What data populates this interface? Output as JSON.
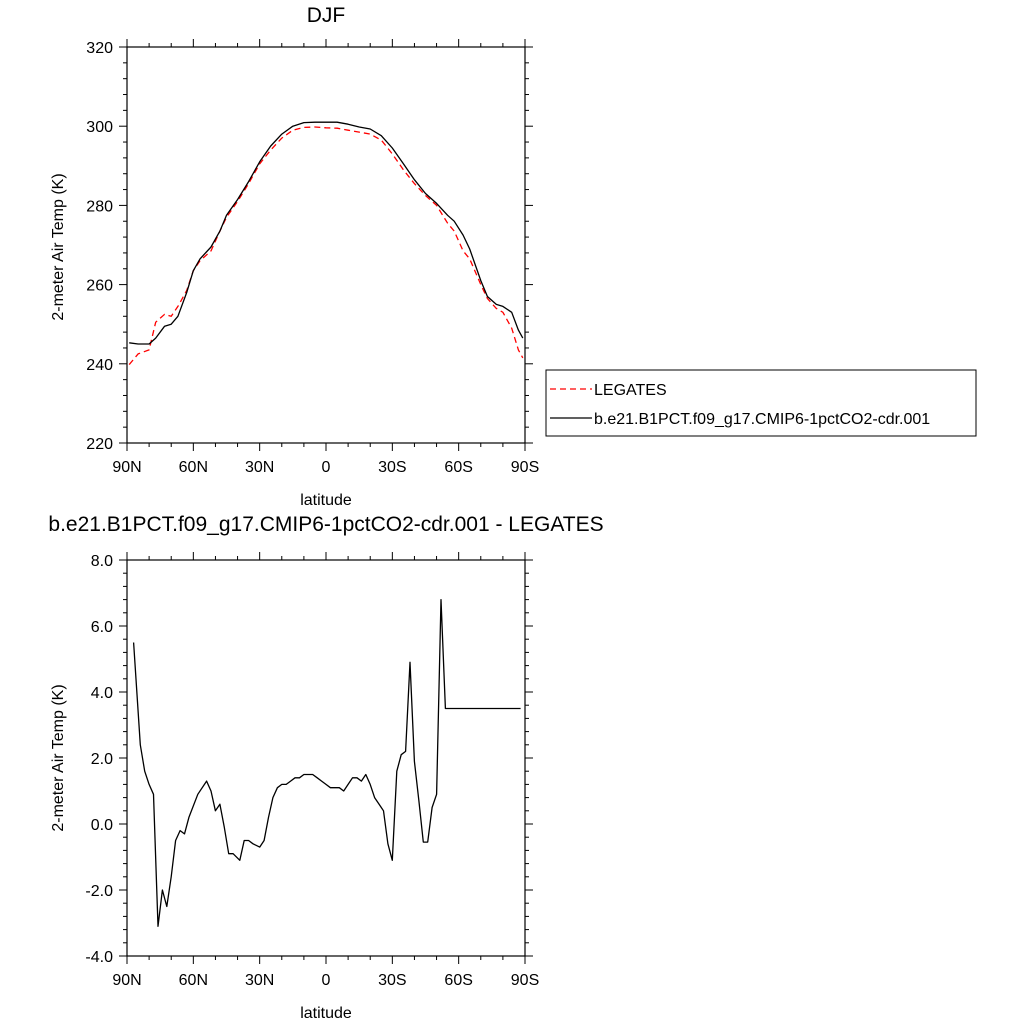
{
  "chart_data": [
    {
      "type": "line",
      "title": "DJF",
      "xlabel": "latitude",
      "ylabel": "2-meter Air Temp (K)",
      "xlim": [
        90,
        -90
      ],
      "ylim": [
        220,
        320
      ],
      "yticks": [
        220,
        240,
        260,
        280,
        300,
        320
      ],
      "ytick_labels": [
        "220",
        "240",
        "260",
        "280",
        "300",
        "320"
      ],
      "xticks": [
        90,
        60,
        30,
        0,
        -30,
        -60,
        -90
      ],
      "xtick_labels": [
        "90N",
        "60N",
        "30N",
        "0",
        "30S",
        "60S",
        "90S"
      ],
      "grid": false,
      "legend_position": "right",
      "x": [
        89,
        85,
        80,
        77,
        73,
        70,
        67,
        63,
        60,
        57,
        52,
        48,
        45,
        40,
        35,
        30,
        25,
        20,
        15,
        10,
        5,
        0,
        -5,
        -10,
        -15,
        -20,
        -25,
        -30,
        -35,
        -40,
        -45,
        -50,
        -55,
        -58,
        -62,
        -65,
        -70,
        -73,
        -77,
        -80,
        -84,
        -87,
        -89
      ],
      "series": [
        {
          "name": "LEGATES",
          "color": "#ff0000",
          "dash": "dashed",
          "values": [
            239.8,
            242.5,
            243.5,
            250.5,
            252.5,
            252.0,
            254.5,
            258.5,
            263.5,
            266.0,
            268.5,
            273.5,
            277.0,
            281.0,
            285.5,
            290.5,
            294.0,
            297.0,
            299.0,
            299.7,
            299.8,
            299.6,
            299.5,
            299.0,
            298.5,
            298.0,
            296.5,
            293.0,
            289.0,
            285.5,
            282.5,
            280.0,
            275.5,
            273.5,
            268.5,
            266.5,
            260.0,
            256.5,
            254.0,
            253.0,
            249.0,
            243.5,
            241.5
          ]
        },
        {
          "name": "b.e21.B1PCT.f09_g17.CMIP6-1pctCO2-cdr.001",
          "color": "#000000",
          "dash": "solid",
          "values": [
            245.3,
            245.0,
            245.0,
            246.5,
            249.5,
            250.0,
            252.0,
            258.0,
            263.5,
            266.5,
            269.5,
            273.5,
            277.5,
            281.5,
            286.0,
            291.0,
            295.0,
            298.0,
            300.0,
            300.9,
            301.0,
            301.0,
            301.0,
            300.5,
            299.8,
            299.3,
            297.6,
            294.5,
            290.5,
            286.5,
            283.0,
            280.5,
            277.5,
            276.0,
            272.5,
            269.0,
            261.0,
            257.0,
            255.0,
            254.5,
            253.0,
            248.5,
            246.5
          ]
        }
      ]
    },
    {
      "type": "line",
      "title": "b.e21.B1PCT.f09_g17.CMIP6-1pctCO2-cdr.001 - LEGATES",
      "xlabel": "latitude",
      "ylabel": "2-meter Air Temp (K)",
      "xlim": [
        90,
        -90
      ],
      "ylim": [
        -4.0,
        8.0
      ],
      "yticks": [
        -4,
        -2,
        0,
        2,
        4,
        6,
        8
      ],
      "ytick_labels": [
        "-4.0",
        "-2.0",
        "0.0",
        "2.0",
        "4.0",
        "6.0",
        "8.0"
      ],
      "xticks": [
        90,
        60,
        30,
        0,
        -30,
        -60,
        -90
      ],
      "xtick_labels": [
        "90N",
        "60N",
        "30N",
        "0",
        "30S",
        "60S",
        "90S"
      ],
      "grid": false,
      "x": [
        87,
        84,
        82,
        80,
        78,
        76,
        74,
        72,
        70,
        68,
        66,
        64,
        62,
        58,
        54,
        52,
        50,
        48,
        46,
        44,
        42,
        39,
        37,
        35,
        33,
        30,
        28,
        26,
        24,
        22,
        20,
        18,
        16,
        14,
        12,
        10,
        8,
        6,
        4,
        2,
        0,
        -2,
        -4,
        -6,
        -8,
        -10,
        -12,
        -14,
        -16,
        -18,
        -20,
        -22,
        -24,
        -26,
        -28,
        -30,
        -32,
        -34,
        -36,
        -38,
        -40,
        -42,
        -44,
        -46,
        -48,
        -50,
        -52,
        -54,
        -56,
        -58,
        -60,
        -62,
        -64,
        -66,
        -68,
        -70,
        -72,
        -74,
        -76,
        -78,
        -80,
        -82,
        -84,
        -86,
        -88
      ],
      "series": [
        {
          "name": "",
          "color": "#000000",
          "dash": "solid",
          "values": [
            5.5,
            2.4,
            1.6,
            1.2,
            0.9,
            -3.1,
            -2.0,
            -2.5,
            -1.6,
            -0.5,
            -0.2,
            -0.3,
            0.2,
            0.9,
            1.3,
            1.0,
            0.4,
            0.6,
            -0.1,
            -0.9,
            -0.9,
            -1.1,
            -0.5,
            -0.5,
            -0.6,
            -0.7,
            -0.5,
            0.2,
            0.8,
            1.1,
            1.2,
            1.2,
            1.3,
            1.4,
            1.4,
            1.5,
            1.5,
            1.5,
            1.4,
            1.3,
            1.2,
            1.1,
            1.1,
            1.1,
            1.0,
            1.2,
            1.4,
            1.4,
            1.3,
            1.5,
            1.2,
            0.8,
            0.6,
            0.4,
            -0.6,
            -1.1,
            1.6,
            2.1,
            2.2,
            4.9,
            1.9,
            0.7,
            -0.55,
            -0.55,
            0.5,
            0.9,
            6.8,
            3.5,
            3.5,
            3.5,
            3.5,
            3.5,
            3.5,
            3.5,
            3.5,
            3.5,
            3.5,
            3.5,
            3.5,
            3.5,
            3.5,
            3.5,
            3.5,
            3.5,
            3.5
          ]
        }
      ]
    }
  ]
}
